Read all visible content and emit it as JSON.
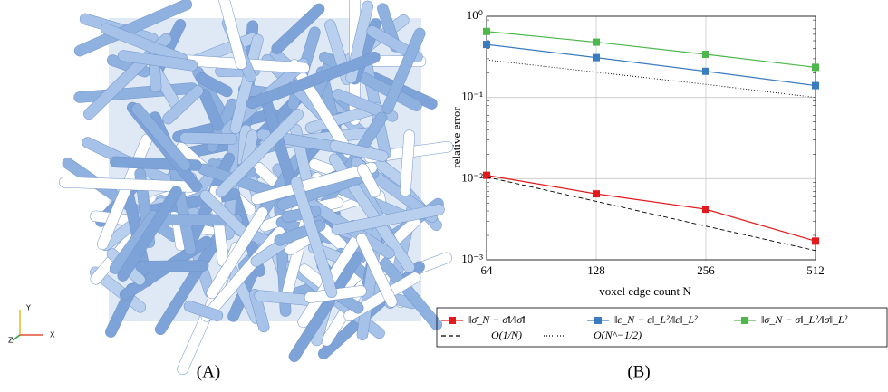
{
  "chart_data": {
    "type": "line",
    "xlabel": "voxel edge count N",
    "ylabel": "relative error",
    "x": [
      64,
      128,
      256,
      512
    ],
    "xlim": [
      64,
      512
    ],
    "xticks": [
      64,
      128,
      256,
      512
    ],
    "ylim": [
      0.001,
      1
    ],
    "yticks": [
      {
        "value": 0.001,
        "label": "10⁻³"
      },
      {
        "value": 0.01,
        "label": "10⁻²"
      },
      {
        "value": 0.1,
        "label": "10⁻¹"
      },
      {
        "value": 1,
        "label": "10⁰"
      }
    ],
    "log_x": true,
    "log_y": true,
    "grid": true,
    "legend": "bottom",
    "series": [
      {
        "name": "‖σ̄_N − σ̄‖/‖σ̄‖",
        "color": "#e31a1c",
        "style": "solid",
        "marker": true,
        "values": [
          0.011,
          0.0065,
          0.0042,
          0.0017
        ]
      },
      {
        "name": "‖ε_N − ε‖_L²/‖ε‖_L²",
        "color": "#3a7cc0",
        "style": "solid",
        "marker": true,
        "values": [
          0.45,
          0.31,
          0.21,
          0.14
        ]
      },
      {
        "name": "‖σ_N − σ‖_L²/‖σ‖_L²",
        "color": "#4cb84c",
        "style": "solid",
        "marker": true,
        "values": [
          0.65,
          0.48,
          0.34,
          0.235
        ]
      },
      {
        "name": "O(1/N)",
        "color": "#000000",
        "style": "dashed",
        "marker": false,
        "values": [
          0.0105,
          0.00525,
          0.0026,
          0.0013
        ]
      },
      {
        "name": "O(N^−1/2)",
        "color": "#000000",
        "style": "dotted",
        "marker": false,
        "values": [
          0.29,
          0.205,
          0.145,
          0.1
        ]
      }
    ]
  },
  "panels": {
    "a": "(A)",
    "b": "(B)",
    "axes": [
      "X",
      "Y",
      "Z"
    ]
  }
}
